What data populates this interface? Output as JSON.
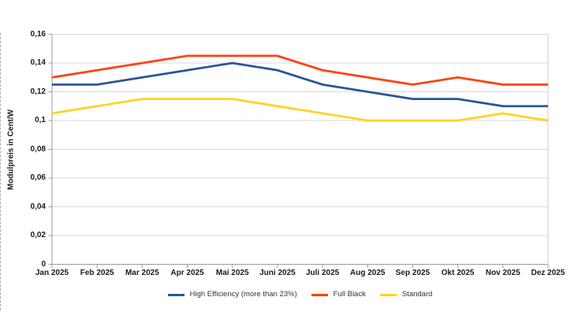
{
  "chart_data": {
    "type": "line",
    "title": "",
    "xlabel": "",
    "ylabel": "Modulpreis in Cent/W",
    "categories": [
      "Jan 2025",
      "Feb 2025",
      "Mar 2025",
      "Apr 2025",
      "Mai 2025",
      "Juni 2025",
      "Juli 2025",
      "Aug 2025",
      "Sep 2025",
      "Okt 2025",
      "Nov 2025",
      "Dez 2025"
    ],
    "ylim": [
      0,
      0.16
    ],
    "y_ticks": [
      {
        "label": "0",
        "value": 0
      },
      {
        "label": "0,02",
        "value": 0.02
      },
      {
        "label": "0,04",
        "value": 0.04
      },
      {
        "label": "0,06",
        "value": 0.06
      },
      {
        "label": "0,08",
        "value": 0.08
      },
      {
        "label": "0,1",
        "value": 0.1
      },
      {
        "label": "0,12",
        "value": 0.12
      },
      {
        "label": "0,14",
        "value": 0.14
      },
      {
        "label": "0,16",
        "value": 0.16
      }
    ],
    "grid": "horizontal",
    "legend_position": "bottom",
    "series": [
      {
        "name": "High Efficiency (more than 23%)",
        "color": "#2A5699",
        "values": [
          0.125,
          0.125,
          0.13,
          0.135,
          0.14,
          0.135,
          0.125,
          0.12,
          0.115,
          0.115,
          0.11,
          0.11
        ]
      },
      {
        "name": "Full Black",
        "color": "#FF420E",
        "values": [
          0.13,
          0.135,
          0.14,
          0.145,
          0.145,
          0.145,
          0.135,
          0.13,
          0.125,
          0.13,
          0.125,
          0.125
        ]
      },
      {
        "name": "Standard",
        "color": "#FFD320",
        "values": [
          0.105,
          0.11,
          0.115,
          0.115,
          0.115,
          0.11,
          0.105,
          0.1,
          0.1,
          0.1,
          0.105,
          0.1
        ]
      }
    ],
    "colors": {
      "gridline": "#d9d9d9",
      "axis_line": "#9b9b9b",
      "plot_border": "#cccccc",
      "axis_label": "#1a1a1a",
      "legend_text": "#333333",
      "background": "#ffffff"
    }
  }
}
